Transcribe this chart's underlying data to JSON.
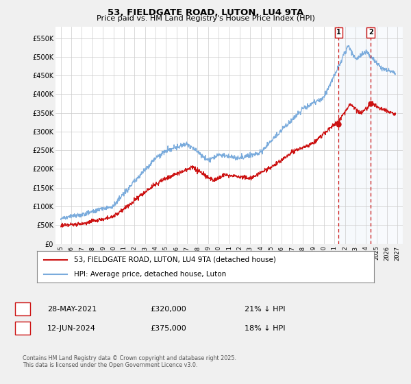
{
  "title": "53, FIELDGATE ROAD, LUTON, LU4 9TA",
  "subtitle": "Price paid vs. HM Land Registry's House Price Index (HPI)",
  "ylim": [
    0,
    580000
  ],
  "yticks": [
    0,
    50000,
    100000,
    150000,
    200000,
    250000,
    300000,
    350000,
    400000,
    450000,
    500000,
    550000
  ],
  "ytick_labels": [
    "£0",
    "£50K",
    "£100K",
    "£150K",
    "£200K",
    "£250K",
    "£300K",
    "£350K",
    "£400K",
    "£450K",
    "£500K",
    "£550K"
  ],
  "background_color": "#f0f0f0",
  "plot_bg_color": "#ffffff",
  "grid_color": "#cccccc",
  "hpi_color": "#7aabdc",
  "price_color": "#cc1111",
  "annotation_color": "#cc1111",
  "shade_color": "#dde8f5",
  "hatch_color": "#aabbcc",
  "sale1_date_num": 2021.41,
  "sale1_price": 320000,
  "sale1_label": "1",
  "sale2_date_num": 2024.45,
  "sale2_price": 375000,
  "sale2_label": "2",
  "legend_line1": "53, FIELDGATE ROAD, LUTON, LU4 9TA (detached house)",
  "legend_line2": "HPI: Average price, detached house, Luton",
  "table_row1": [
    "1",
    "28-MAY-2021",
    "£320,000",
    "21% ↓ HPI"
  ],
  "table_row2": [
    "2",
    "12-JUN-2024",
    "£375,000",
    "18% ↓ HPI"
  ],
  "footnote": "Contains HM Land Registry data © Crown copyright and database right 2025.\nThis data is licensed under the Open Government Licence v3.0.",
  "xmin": 1994.5,
  "xmax": 2027.5
}
